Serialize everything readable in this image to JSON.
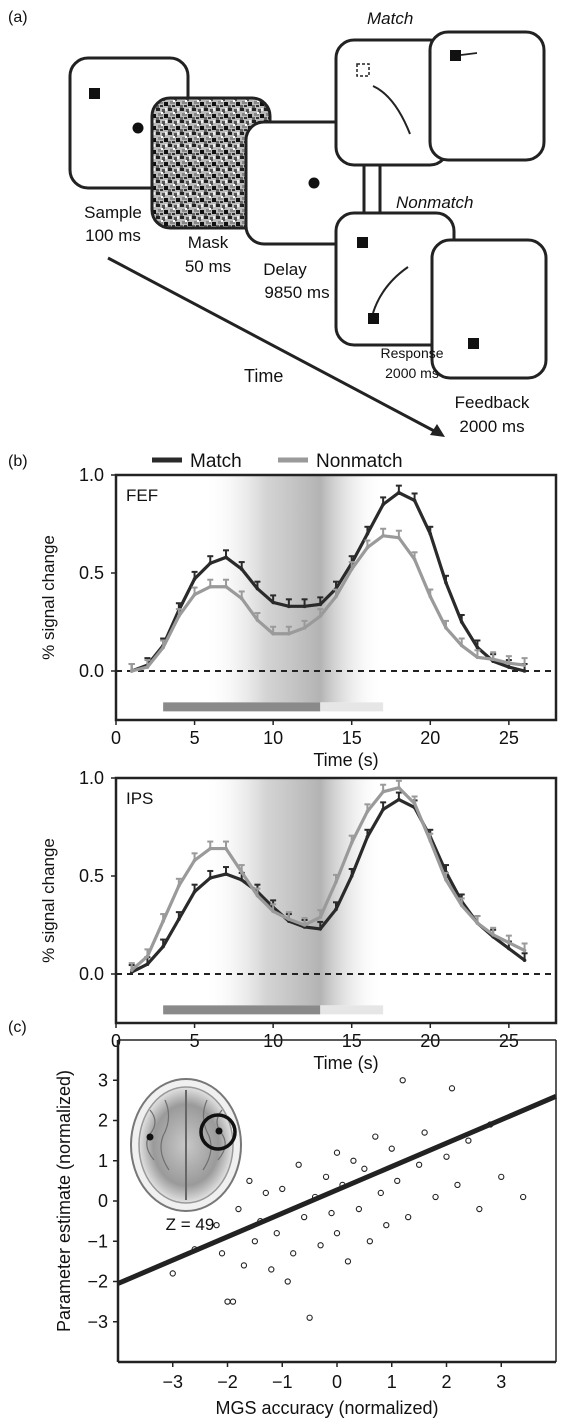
{
  "panel_a": {
    "label": "(a)",
    "match_title": "Match",
    "nonmatch_title": "Nonmatch",
    "time_label": "Time",
    "steps": [
      {
        "name": "Sample",
        "duration": "100 ms"
      },
      {
        "name": "Mask",
        "duration": "50 ms"
      },
      {
        "name": "Delay",
        "duration": "9850 ms"
      },
      {
        "name": "Response",
        "duration": "2000 ms"
      },
      {
        "name": "Feedback",
        "duration": "2000 ms"
      }
    ]
  },
  "panel_b": {
    "label": "(b)",
    "legend": [
      {
        "name": "Match",
        "color": "#2a2a2a"
      },
      {
        "name": "Nonmatch",
        "color": "#9a9a9a"
      }
    ]
  },
  "panel_c": {
    "label": "(c)",
    "inset_label": "Z = 49"
  },
  "chart_data": [
    {
      "type": "line",
      "region": "FEF",
      "xlabel": "Time (s)",
      "ylabel": "% signal change",
      "xlim": [
        0,
        28
      ],
      "ylim": [
        -0.25,
        1.0
      ],
      "xticks": [
        "0",
        "5",
        "10",
        "15",
        "20",
        "25"
      ],
      "yticks": [
        "0.0",
        "0.5",
        "1.0"
      ],
      "baseline": 0,
      "shaded_delay_s": [
        3,
        13
      ],
      "series": [
        {
          "name": "Match",
          "color": "#2a2a2a",
          "x": [
            1,
            2,
            3,
            4,
            5,
            6,
            7,
            8,
            9,
            10,
            11,
            12,
            13,
            14,
            15,
            16,
            17,
            18,
            19,
            20,
            21,
            22,
            23,
            24,
            25,
            26
          ],
          "y": [
            0.0,
            0.03,
            0.13,
            0.31,
            0.47,
            0.55,
            0.58,
            0.52,
            0.42,
            0.35,
            0.33,
            0.33,
            0.34,
            0.42,
            0.55,
            0.7,
            0.85,
            0.91,
            0.87,
            0.7,
            0.45,
            0.25,
            0.12,
            0.05,
            0.02,
            0.0
          ]
        },
        {
          "name": "Nonmatch",
          "color": "#9a9a9a",
          "x": [
            1,
            2,
            3,
            4,
            5,
            6,
            7,
            8,
            9,
            10,
            11,
            12,
            13,
            14,
            15,
            16,
            17,
            18,
            19,
            20,
            21,
            22,
            23,
            24,
            25,
            26
          ],
          "y": [
            0.0,
            0.02,
            0.12,
            0.28,
            0.39,
            0.43,
            0.43,
            0.37,
            0.26,
            0.19,
            0.19,
            0.22,
            0.28,
            0.38,
            0.52,
            0.63,
            0.69,
            0.68,
            0.57,
            0.38,
            0.22,
            0.13,
            0.07,
            0.06,
            0.04,
            0.03
          ]
        }
      ]
    },
    {
      "type": "line",
      "region": "IPS",
      "xlabel": "Time (s)",
      "ylabel": "% signal change",
      "xlim": [
        0,
        28
      ],
      "ylim": [
        -0.25,
        1.0
      ],
      "xticks": [
        "0",
        "5",
        "10",
        "15",
        "20",
        "25"
      ],
      "yticks": [
        "0.0",
        "0.5",
        "1.0"
      ],
      "baseline": 0,
      "shaded_delay_s": [
        3,
        13
      ],
      "series": [
        {
          "name": "Match",
          "color": "#2a2a2a",
          "x": [
            1,
            2,
            3,
            4,
            5,
            6,
            7,
            8,
            9,
            10,
            11,
            12,
            13,
            14,
            15,
            16,
            17,
            18,
            19,
            20,
            21,
            22,
            23,
            24,
            25,
            26
          ],
          "y": [
            0.01,
            0.05,
            0.14,
            0.28,
            0.42,
            0.49,
            0.51,
            0.48,
            0.42,
            0.34,
            0.27,
            0.24,
            0.23,
            0.33,
            0.5,
            0.7,
            0.84,
            0.89,
            0.85,
            0.7,
            0.52,
            0.37,
            0.26,
            0.19,
            0.13,
            0.07
          ]
        },
        {
          "name": "Nonmatch",
          "color": "#9a9a9a",
          "x": [
            1,
            2,
            3,
            4,
            5,
            6,
            7,
            8,
            9,
            10,
            11,
            12,
            13,
            14,
            15,
            16,
            17,
            18,
            19,
            20,
            21,
            22,
            23,
            24,
            25,
            26
          ],
          "y": [
            0.02,
            0.09,
            0.27,
            0.45,
            0.58,
            0.64,
            0.64,
            0.52,
            0.4,
            0.32,
            0.28,
            0.25,
            0.29,
            0.47,
            0.67,
            0.83,
            0.93,
            0.95,
            0.87,
            0.68,
            0.48,
            0.35,
            0.26,
            0.2,
            0.16,
            0.12
          ]
        }
      ]
    },
    {
      "type": "scatter",
      "xlabel": "MGS accuracy (normalized)",
      "ylabel": "Parameter estimate (normalized)",
      "xlim": [
        -4,
        4
      ],
      "ylim": [
        -4,
        4
      ],
      "xticks": [
        "−3",
        "−2",
        "−1",
        "0",
        "1",
        "2",
        "3"
      ],
      "yticks": [
        "−3",
        "−2",
        "−1",
        "0",
        "1",
        "2",
        "3"
      ],
      "fit_line": {
        "x": [
          -4,
          4
        ],
        "y": [
          -2.05,
          2.6
        ]
      },
      "points": [
        [
          -3.0,
          -1.8
        ],
        [
          -2.6,
          -1.2
        ],
        [
          -2.2,
          -0.6
        ],
        [
          -2.1,
          -1.3
        ],
        [
          -2.0,
          -2.5
        ],
        [
          -1.9,
          -2.5
        ],
        [
          -1.8,
          -0.2
        ],
        [
          -1.7,
          -1.6
        ],
        [
          -1.6,
          0.5
        ],
        [
          -1.5,
          -1.0
        ],
        [
          -1.4,
          -0.5
        ],
        [
          -1.3,
          0.2
        ],
        [
          -1.2,
          -1.7
        ],
        [
          -1.1,
          -0.8
        ],
        [
          -1.0,
          0.3
        ],
        [
          -0.9,
          -2.0
        ],
        [
          -0.8,
          -1.3
        ],
        [
          -0.7,
          0.9
        ],
        [
          -0.6,
          -0.4
        ],
        [
          -0.5,
          -2.9
        ],
        [
          -0.4,
          0.1
        ],
        [
          -0.3,
          -1.1
        ],
        [
          -0.2,
          0.6
        ],
        [
          -0.1,
          -0.3
        ],
        [
          0.0,
          1.2
        ],
        [
          0.0,
          -0.8
        ],
        [
          0.1,
          0.4
        ],
        [
          0.2,
          -1.5
        ],
        [
          0.3,
          1.0
        ],
        [
          0.4,
          -0.2
        ],
        [
          0.5,
          0.8
        ],
        [
          0.6,
          -1.0
        ],
        [
          0.7,
          1.6
        ],
        [
          0.8,
          0.2
        ],
        [
          0.9,
          -0.6
        ],
        [
          1.0,
          1.3
        ],
        [
          1.1,
          0.5
        ],
        [
          1.2,
          3.0
        ],
        [
          1.3,
          -0.4
        ],
        [
          1.5,
          0.9
        ],
        [
          1.6,
          1.7
        ],
        [
          1.8,
          0.1
        ],
        [
          2.0,
          1.1
        ],
        [
          2.1,
          2.8
        ],
        [
          2.2,
          0.4
        ],
        [
          2.4,
          1.5
        ],
        [
          2.6,
          -0.2
        ],
        [
          2.8,
          1.9
        ],
        [
          3.0,
          0.6
        ],
        [
          3.4,
          0.1
        ]
      ]
    }
  ]
}
